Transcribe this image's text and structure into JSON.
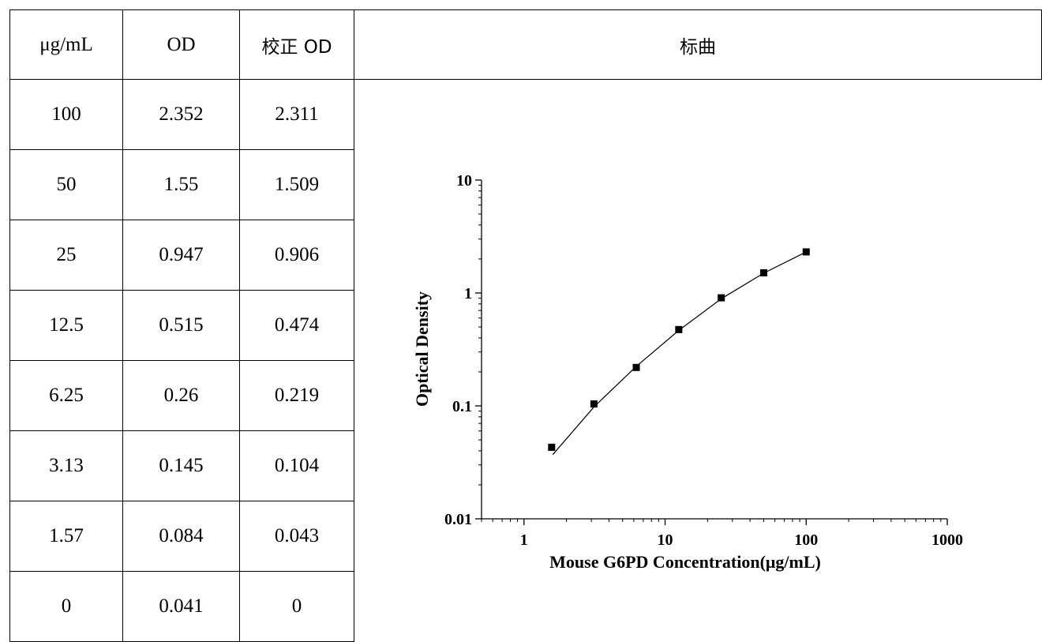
{
  "table": {
    "headers": [
      "μg/mL",
      "OD",
      "校正 OD",
      "标曲"
    ],
    "rows": [
      [
        "100",
        "2.352",
        "2.311"
      ],
      [
        "50",
        "1.55",
        "1.509"
      ],
      [
        "25",
        "0.947",
        "0.906"
      ],
      [
        "12.5",
        "0.515",
        "0.474"
      ],
      [
        "6.25",
        "0.26",
        "0.219"
      ],
      [
        "3.13",
        "0.145",
        "0.104"
      ],
      [
        "1.57",
        "0.084",
        "0.043"
      ],
      [
        "0",
        "0.041",
        "0"
      ]
    ]
  },
  "chart_data": {
    "type": "scatter",
    "xlabel": "Mouse G6PD Concentration(μg/mL)",
    "ylabel": "Optical Density",
    "xscale": "log",
    "yscale": "log",
    "xlim": [
      0.5,
      1000
    ],
    "ylim": [
      0.01,
      10
    ],
    "xticks": [
      "1",
      "10",
      "100",
      "1000"
    ],
    "yticks": [
      "0.01",
      "0.1",
      "1",
      "10"
    ],
    "points": {
      "x": [
        100,
        50,
        25,
        12.5,
        6.25,
        3.13,
        1.57
      ],
      "y": [
        2.311,
        1.509,
        0.906,
        0.474,
        0.219,
        0.104,
        0.043
      ]
    },
    "fit_curve": {
      "x": [
        1.6,
        3.13,
        6.25,
        12.5,
        25,
        50,
        100
      ],
      "y": [
        0.037,
        0.098,
        0.224,
        0.466,
        0.889,
        1.498,
        2.311
      ]
    },
    "marker": "filled-square",
    "color": "#000000",
    "grid": false,
    "legend": false
  }
}
